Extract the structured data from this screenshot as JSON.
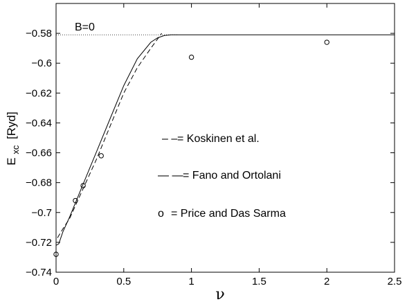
{
  "chart_data": {
    "type": "line",
    "xlabel": "ν",
    "ylabel": "E",
    "ylabel_sub": "xc",
    "ylabel_units": "[Ryd]",
    "xlim": [
      0,
      2.5
    ],
    "ylim": [
      -0.74,
      -0.56
    ],
    "xticks": [
      0,
      0.5,
      1,
      1.5,
      2,
      2.5
    ],
    "xtick_labels": [
      "0",
      "0.5",
      "1",
      "1.5",
      "2",
      "2.5"
    ],
    "yticks": [
      -0.74,
      -0.72,
      -0.7,
      -0.68,
      -0.66,
      -0.64,
      -0.62,
      -0.6,
      -0.58
    ],
    "ytick_labels": [
      "−0.74",
      "−0.72",
      "−0.7",
      "−0.68",
      "−0.66",
      "−0.64",
      "−0.62",
      "−0.6",
      "−0.58"
    ],
    "grid": false,
    "annotation": "B=0",
    "reference_line": {
      "y": -0.581,
      "x": [
        0,
        0.9
      ],
      "style": "dotted"
    },
    "series": [
      {
        "name": "Koskinen et al.",
        "style": "solid",
        "x": [
          0,
          0.02,
          0.05,
          0.1,
          0.2,
          0.3,
          0.4,
          0.5,
          0.6,
          0.7,
          0.75,
          0.8,
          0.85,
          0.9,
          1.0,
          1.5,
          2.0,
          2.5
        ],
        "y": [
          -0.722,
          -0.721,
          -0.713,
          -0.703,
          -0.681,
          -0.659,
          -0.637,
          -0.615,
          -0.597,
          -0.586,
          -0.583,
          -0.5815,
          -0.581,
          -0.581,
          -0.581,
          -0.581,
          -0.581,
          -0.581
        ]
      },
      {
        "name": "Fano and Ortolani",
        "style": "dashed",
        "x": [
          0.01,
          0.05,
          0.1,
          0.2,
          0.3,
          0.4,
          0.5,
          0.6,
          0.7,
          0.78
        ],
        "y": [
          -0.717,
          -0.711,
          -0.704,
          -0.684,
          -0.664,
          -0.642,
          -0.62,
          -0.603,
          -0.59,
          -0.58
        ]
      },
      {
        "name": "Price and Das Sarma",
        "style": "markers",
        "marker": "circle",
        "x": [
          0,
          0.1429,
          0.2,
          0.3333,
          1.0,
          2.0
        ],
        "y": [
          -0.728,
          -0.692,
          -0.682,
          -0.662,
          -0.596,
          -0.586
        ]
      }
    ],
    "legend": [
      {
        "symbol": "– –",
        "text": "= Koskinen et al."
      },
      {
        "symbol": "— —",
        "text": "= Fano and Ortolani"
      },
      {
        "symbol": "o",
        "text": "= Price and Das Sarma"
      }
    ]
  }
}
